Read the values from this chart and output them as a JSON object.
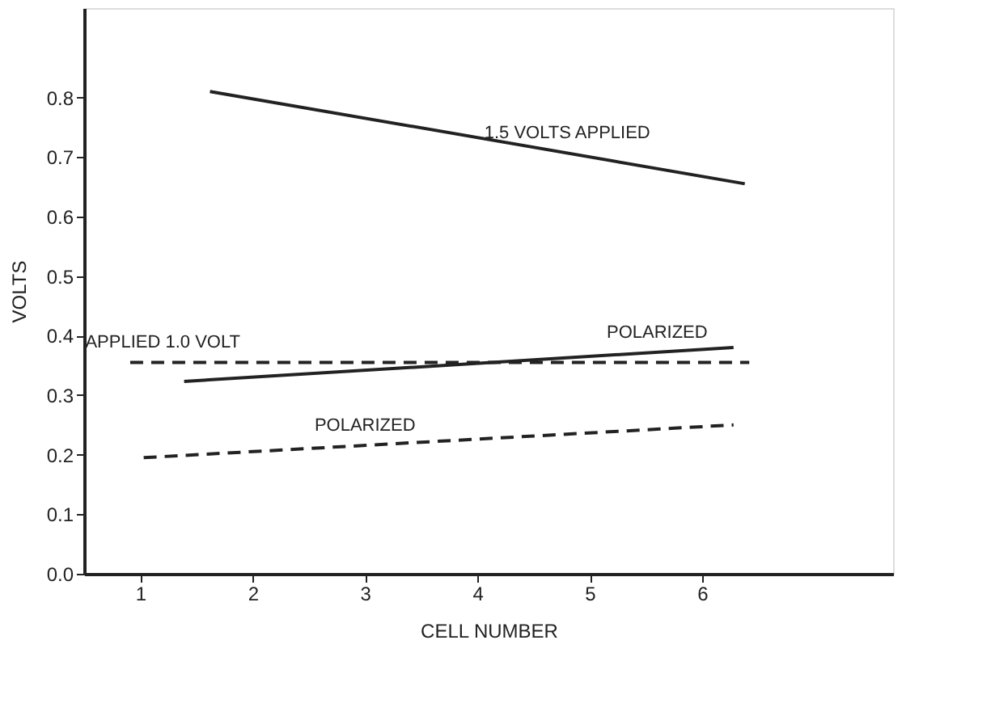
{
  "chart_data": {
    "type": "line",
    "xlabel": "CELL   NUMBER",
    "ylabel": "VOLTS",
    "xlim": [
      0.5,
      7.7
    ],
    "ylim": [
      0,
      0.95
    ],
    "xticks": [
      1,
      2,
      3,
      4,
      5,
      6
    ],
    "yticks": [
      {
        "value": 0,
        "label": "0.0"
      },
      0.1,
      0.2,
      0.3,
      0.4,
      0.5,
      0.6,
      0.7,
      0.8
    ],
    "grid": false,
    "marker": "none",
    "series": [
      {
        "color": "#222222",
        "line_style": "solid",
        "x": [
          1.62,
          6.38
        ],
        "values": [
          0.81,
          0.655
        ]
      },
      {
        "color": "#222222",
        "line_style": "solid",
        "x": [
          1.39,
          6.28
        ],
        "values": [
          0.323,
          0.38
        ]
      },
      {
        "color": "#222222",
        "line_style": "dashed",
        "x": [
          0.91,
          6.42
        ],
        "values": [
          0.355,
          0.355
        ]
      },
      {
        "color": "#222222",
        "line_style": "dashed",
        "x": [
          1.03,
          6.28
        ],
        "values": [
          0.195,
          0.25
        ]
      }
    ],
    "annotations": [
      {
        "text": "1.5 VOLTS APPLIED",
        "x": 4.8,
        "y": 0.707
      },
      {
        "text": "POLARIZED",
        "x": 5.6,
        "y": 0.372
      },
      {
        "text": "APPLIED 1.0 VOLT",
        "x": 1.2,
        "y": 0.355
      },
      {
        "text": "POLARIZED",
        "x": 3.0,
        "y": 0.216
      }
    ]
  }
}
